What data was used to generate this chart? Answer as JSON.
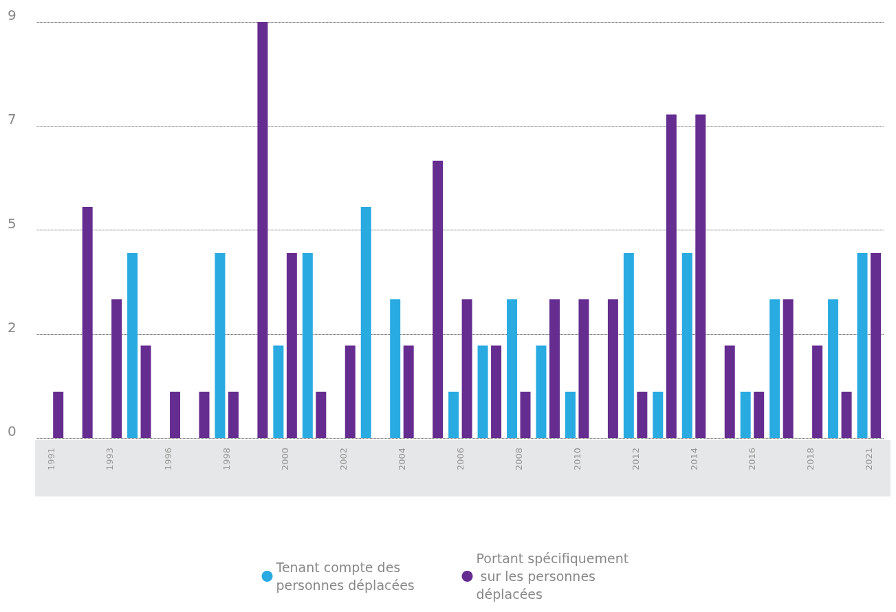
{
  "chart_data": {
    "type": "bar",
    "categories": [
      "1991",
      null,
      "1993",
      null,
      "1996",
      null,
      "1998",
      null,
      "2000",
      null,
      "2002",
      null,
      "2004",
      null,
      "2006",
      null,
      "2008",
      null,
      "2010",
      null,
      "2012",
      null,
      "2014",
      null,
      "2016",
      null,
      "2018",
      null,
      "2021"
    ],
    "series": [
      {
        "name": "Tenant compte des personnes déplacées",
        "color": "#29abe2",
        "values": [
          null,
          null,
          null,
          4,
          null,
          null,
          4,
          null,
          2,
          4,
          null,
          5,
          3,
          null,
          1,
          2,
          3,
          2,
          1,
          null,
          4,
          1,
          4,
          null,
          1,
          3,
          null,
          3,
          4
        ]
      },
      {
        "name": "Portant spécifiquement sur les personnes déplacées",
        "color": "#662d91",
        "values": [
          1,
          5,
          3,
          2,
          1,
          1,
          1,
          9,
          4,
          1,
          2,
          null,
          2,
          6,
          3,
          2,
          1,
          3,
          3,
          3,
          1,
          7,
          7,
          2,
          1,
          3,
          2,
          1,
          4
        ]
      }
    ],
    "ylim": [
      0,
      9
    ],
    "yticks": [
      0,
      {
        "value": 2.25,
        "label": "2"
      },
      {
        "value": 4.5,
        "label": "5"
      },
      {
        "value": 6.75,
        "label": "7"
      },
      9
    ],
    "grid": "y",
    "legend": "bottom"
  }
}
